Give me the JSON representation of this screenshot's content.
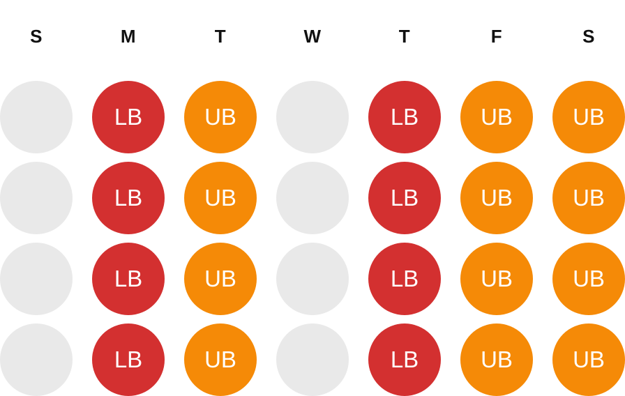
{
  "colors": {
    "rest": "#e9e9e9",
    "lower_body": "#d33030",
    "upper_body": "#f58a07"
  },
  "days": [
    "S",
    "M",
    "T",
    "W",
    "T",
    "F",
    "S"
  ],
  "weeks": [
    [
      "",
      "LB",
      "UB",
      "",
      "LB",
      "UB",
      "UB"
    ],
    [
      "",
      "LB",
      "UB",
      "",
      "LB",
      "UB",
      "UB"
    ],
    [
      "",
      "LB",
      "UB",
      "",
      "LB",
      "UB",
      "UB"
    ],
    [
      "",
      "LB",
      "UB",
      "",
      "LB",
      "UB",
      "UB"
    ]
  ]
}
